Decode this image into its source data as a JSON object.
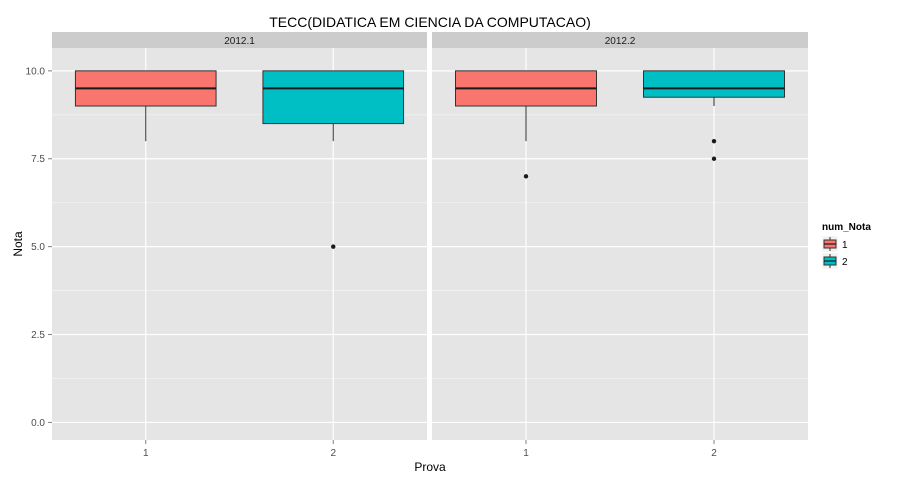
{
  "chart_data": {
    "type": "boxplot",
    "title": "TECC(DIDATICA EM CIENCIA DA COMPUTACAO)",
    "xlabel": "Prova",
    "ylabel": "Nota",
    "ylim": [
      -0.5,
      10.65
    ],
    "y_ticks": [
      0.0,
      2.5,
      5.0,
      7.5,
      10.0
    ],
    "y_tick_labels": [
      "0.0",
      "2.5",
      "5.0",
      "7.5",
      "10.0"
    ],
    "categories": [
      "1",
      "2"
    ],
    "facets": [
      {
        "label": "2012.1",
        "boxes": [
          {
            "x": "1",
            "group": "1",
            "min": 8.0,
            "q1": 9.0,
            "median": 9.5,
            "q3": 10.0,
            "max": 10.0,
            "outliers": []
          },
          {
            "x": "2",
            "group": "2",
            "min": 8.0,
            "q1": 8.5,
            "median": 9.5,
            "q3": 10.0,
            "max": 10.0,
            "outliers": [
              5.0
            ]
          }
        ]
      },
      {
        "label": "2012.2",
        "boxes": [
          {
            "x": "1",
            "group": "1",
            "min": 8.0,
            "q1": 9.0,
            "median": 9.5,
            "q3": 10.0,
            "max": 10.0,
            "outliers": [
              7.0
            ]
          },
          {
            "x": "2",
            "group": "2",
            "min": 9.0,
            "q1": 9.25,
            "median": 9.5,
            "q3": 10.0,
            "max": 10.0,
            "outliers": [
              8.0,
              7.5
            ]
          }
        ]
      }
    ],
    "legend": {
      "title": "num_Nota",
      "position": "right",
      "items": [
        {
          "label": "1",
          "color": "#F8766D"
        },
        {
          "label": "2",
          "color": "#00BFC4"
        }
      ]
    },
    "grid": true,
    "panel_color": "#E5E5E5",
    "strip_color": "#CCCCCC",
    "grid_color": "#FFFFFF"
  }
}
